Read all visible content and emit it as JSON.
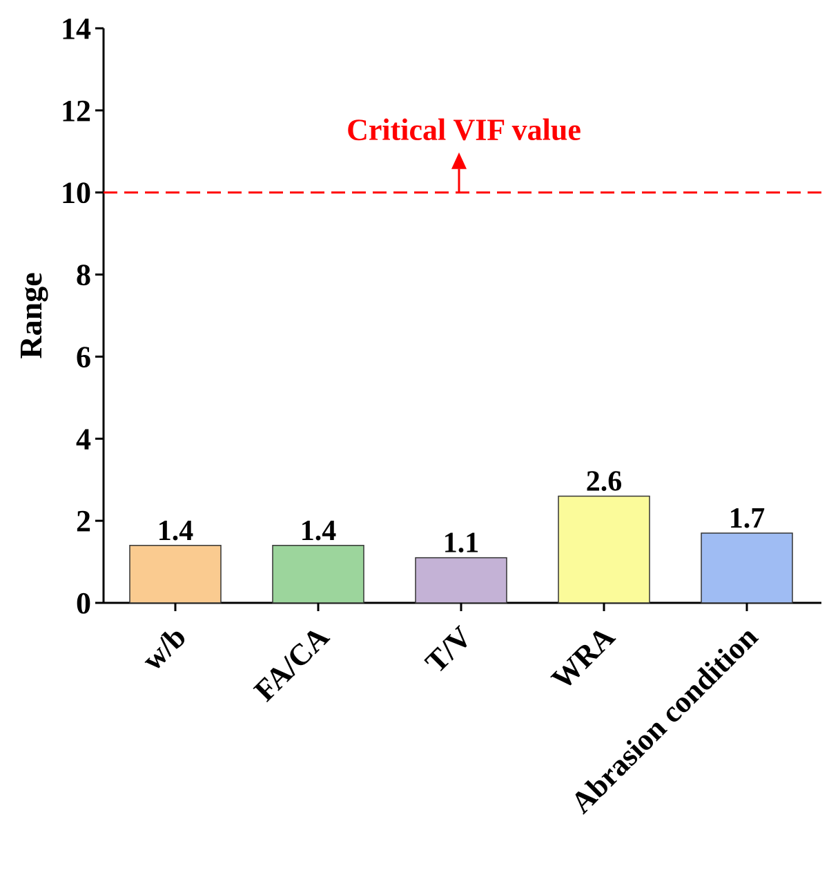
{
  "chart_data": {
    "type": "bar",
    "title": "",
    "xlabel": "",
    "ylabel": "Range",
    "ylim": [
      0,
      14
    ],
    "yticks": [
      0,
      2,
      4,
      6,
      8,
      10,
      12,
      14
    ],
    "grid": false,
    "categories": [
      "w/b",
      "FA/CA",
      "T/V",
      "WRA",
      "Abrasion condition"
    ],
    "values": [
      1.4,
      1.4,
      1.1,
      2.6,
      1.7
    ],
    "data_labels": [
      "1.4",
      "1.4",
      "1.1",
      "2.6",
      "1.7"
    ],
    "bar_colors": [
      "#FACB90",
      "#9CD59C",
      "#C4B2D6",
      "#FBFB9A",
      "#9FBCF3"
    ],
    "bar_edge_color": "#333333",
    "reference_line": {
      "y": 10,
      "label": "Critical VIF value",
      "color": "#FF0000",
      "style": "dashed"
    }
  }
}
